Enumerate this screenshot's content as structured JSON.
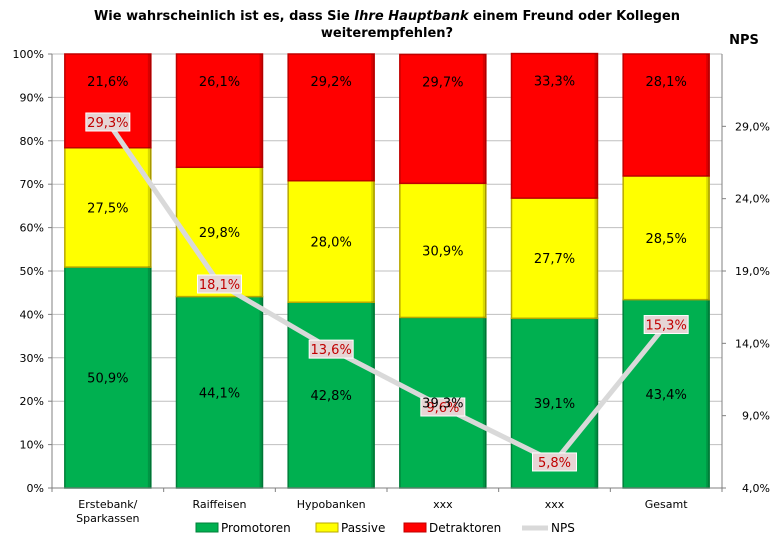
{
  "chart_data": {
    "type": "bar",
    "stacked": true,
    "title_parts": [
      {
        "line": 1,
        "text": "Wie wahrscheinlich ist es, dass Sie ",
        "italic": false
      },
      {
        "line": 1,
        "text": "Ihre Hauptbank",
        "italic": true
      },
      {
        "line": 1,
        "text": " einem Freund oder Kollegen",
        "italic": false
      },
      {
        "line": 2,
        "text": "weiterempfehlen?",
        "italic": false
      }
    ],
    "categories": [
      [
        "Erstebank/",
        "Sparkassen"
      ],
      [
        "Raiffeisen"
      ],
      [
        "Hypobanken"
      ],
      [
        "xxx"
      ],
      [
        "xxx"
      ],
      [
        "Gesamt"
      ]
    ],
    "y_left": {
      "min": 0,
      "max": 100,
      "step": 10,
      "format": "percent0",
      "ticks": [
        "0%",
        "10%",
        "20%",
        "30%",
        "40%",
        "50%",
        "60%",
        "70%",
        "80%",
        "90%",
        "100%"
      ]
    },
    "y_right": {
      "title": "NPS",
      "min": 4.0,
      "max": 34.0,
      "step": 5,
      "ticks": [
        "4,0%",
        "9,0%",
        "14,0%",
        "19,0%",
        "24,0%",
        "29,0%"
      ]
    },
    "series": [
      {
        "name": "Promotoren",
        "color": "#00b050",
        "border": "#00803a",
        "values": [
          50.9,
          44.1,
          42.8,
          39.3,
          39.1,
          43.4
        ],
        "labels": [
          "50,9%",
          "44,1%",
          "42,8%",
          "39,3%",
          "39,1%",
          "43,4%"
        ]
      },
      {
        "name": "Passive",
        "color": "#ffff00",
        "border": "#b8a800",
        "values": [
          27.5,
          29.8,
          28.0,
          30.9,
          27.7,
          28.5
        ],
        "labels": [
          "27,5%",
          "29,8%",
          "28,0%",
          "30,9%",
          "27,7%",
          "28,5%"
        ]
      },
      {
        "name": "Detraktoren",
        "color": "#ff0000",
        "border": "#c00000",
        "values": [
          21.6,
          26.1,
          29.2,
          29.7,
          33.3,
          28.1
        ],
        "labels": [
          "21,6%",
          "26,1%",
          "29,2%",
          "29,7%",
          "33,3%",
          "28,1%"
        ]
      }
    ],
    "line": {
      "name": "NPS",
      "color": "#d9d9d9",
      "values": [
        29.3,
        18.1,
        13.6,
        9.6,
        5.8,
        15.3
      ],
      "labels": [
        "29,3%",
        "18,1%",
        "13,6%",
        "9,6%",
        "5,8%",
        "15,3%"
      ]
    },
    "legend": [
      "Promotoren",
      "Passive",
      "Detraktoren",
      "NPS"
    ],
    "legend_position": "bottom"
  }
}
